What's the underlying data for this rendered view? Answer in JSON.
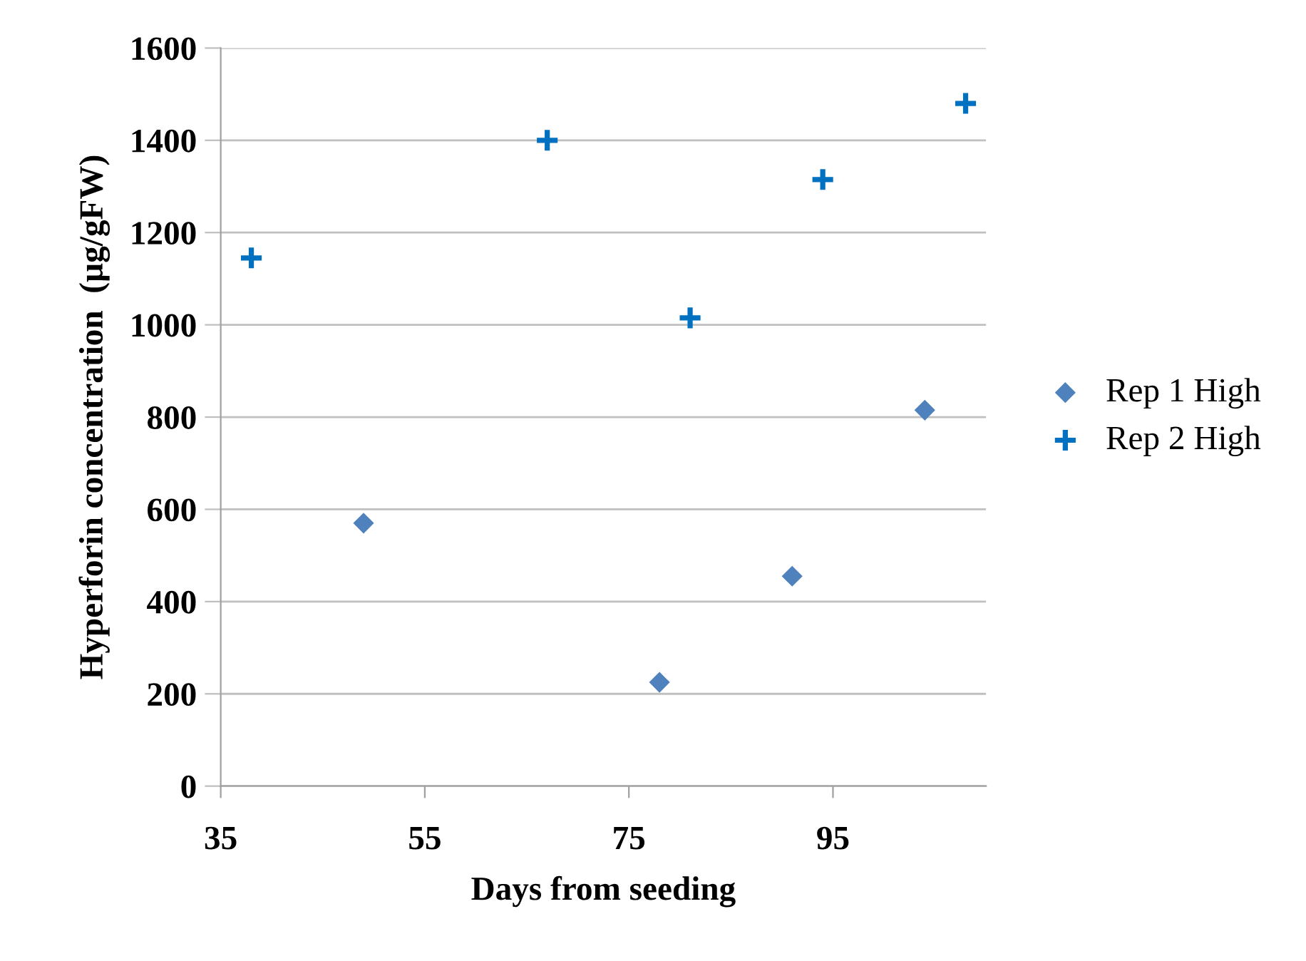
{
  "chart_data": {
    "type": "scatter",
    "xlabel": "Days from seeding",
    "ylabel": "Hyperforin concentration  (µg/gFW)",
    "xlim": [
      35,
      110
    ],
    "xticks": [
      35,
      55,
      75,
      95
    ],
    "ylim": [
      0,
      1600
    ],
    "yticks": [
      0,
      200,
      400,
      600,
      800,
      1000,
      1200,
      1400,
      1600
    ],
    "grid": "y",
    "legend": "right",
    "series": [
      {
        "name": "Rep 1 High",
        "color": "#4f81bd",
        "marker": "diamond",
        "x": [
          49,
          78,
          91,
          104
        ],
        "values": [
          570,
          225,
          455,
          815
        ]
      },
      {
        "name": "Rep 2 High",
        "color": "#0070c0",
        "marker": "cross",
        "x": [
          38,
          67,
          81,
          94,
          108
        ],
        "values": [
          1145,
          1400,
          1015,
          1315,
          1480
        ]
      }
    ]
  }
}
